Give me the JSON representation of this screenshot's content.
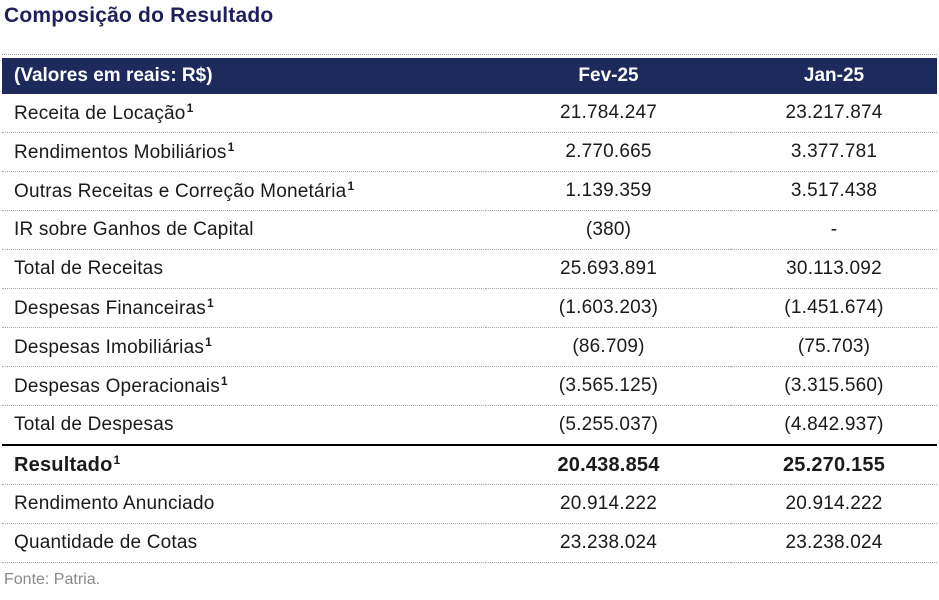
{
  "title": "Composição do Resultado",
  "header": {
    "label": "(Valores em reais: R$)",
    "col1": "Fev-25",
    "col2": "Jan-25"
  },
  "rows": [
    {
      "label": "Receita de Locação",
      "note": "1",
      "fev": "21.784.247",
      "jan": "23.217.874"
    },
    {
      "label": "Rendimentos Mobiliários",
      "note": "1",
      "fev": "2.770.665",
      "jan": "3.377.781"
    },
    {
      "label": "Outras Receitas e Correção Monetária",
      "note": "1",
      "fev": "1.139.359",
      "jan": "3.517.438"
    },
    {
      "label": "IR sobre Ganhos de Capital",
      "note": "",
      "fev": "(380)",
      "jan": "-"
    },
    {
      "label": "Total de Receitas",
      "note": "",
      "fev": "25.693.891",
      "jan": "30.113.092"
    },
    {
      "label": "Despesas Financeiras",
      "note": "1",
      "fev": "(1.603.203)",
      "jan": "(1.451.674)"
    },
    {
      "label": "Despesas Imobiliárias",
      "note": "1",
      "fev": "(86.709)",
      "jan": "(75.703)"
    },
    {
      "label": "Despesas Operacionais",
      "note": "1",
      "fev": "(3.565.125)",
      "jan": "(3.315.560)"
    },
    {
      "label": "Total de Despesas",
      "note": "",
      "fev": "(5.255.037)",
      "jan": "(4.842.937)"
    },
    {
      "label": "Resultado",
      "note": "1",
      "fev": "20.438.854",
      "jan": "25.270.155"
    },
    {
      "label": "Rendimento Anunciado",
      "note": "",
      "fev": "20.914.222",
      "jan": "20.914.222"
    },
    {
      "label": "Quantidade de Cotas",
      "note": "",
      "fev": "23.238.024",
      "jan": "23.238.024"
    }
  ],
  "source": "Fonte: Patria."
}
